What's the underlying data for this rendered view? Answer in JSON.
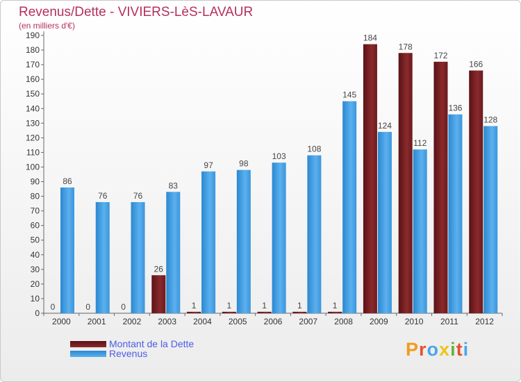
{
  "title": "Revenus/Dette - VIVIERS-LèS-LAVAUR",
  "subtitle": "(en milliers d'€)",
  "logo": {
    "text": "Proxiti",
    "letters": [
      {
        "char": "P",
        "color": "#f39a1e"
      },
      {
        "char": "r",
        "color": "#e8502c"
      },
      {
        "char": "o",
        "color": "#4da6e8"
      },
      {
        "char": "x",
        "color": "#f0c419"
      },
      {
        "char": "i",
        "color": "#5fb541"
      },
      {
        "char": "t",
        "color": "#e8502c"
      },
      {
        "char": "i",
        "color": "#4da6e8"
      }
    ]
  },
  "chart_data": {
    "type": "bar",
    "categories": [
      "2000",
      "2001",
      "2002",
      "2003",
      "2004",
      "2005",
      "2006",
      "2007",
      "2008",
      "2009",
      "2010",
      "2011",
      "2012"
    ],
    "series": [
      {
        "name": "Montant de la Dette",
        "color": "#7a1f22",
        "values": [
          0,
          0,
          0,
          26,
          1,
          1,
          1,
          1,
          1,
          184,
          178,
          172,
          166
        ]
      },
      {
        "name": "Revenus",
        "color": "#3e9be0",
        "values": [
          86,
          76,
          76,
          83,
          97,
          98,
          103,
          108,
          145,
          124,
          112,
          136,
          128
        ]
      }
    ],
    "ylim": [
      0,
      190
    ],
    "yticks": [
      0,
      10,
      20,
      30,
      40,
      50,
      60,
      70,
      80,
      90,
      100,
      110,
      120,
      130,
      140,
      150,
      160,
      170,
      180,
      190
    ],
    "grid": false,
    "legend": "bottom-left"
  }
}
